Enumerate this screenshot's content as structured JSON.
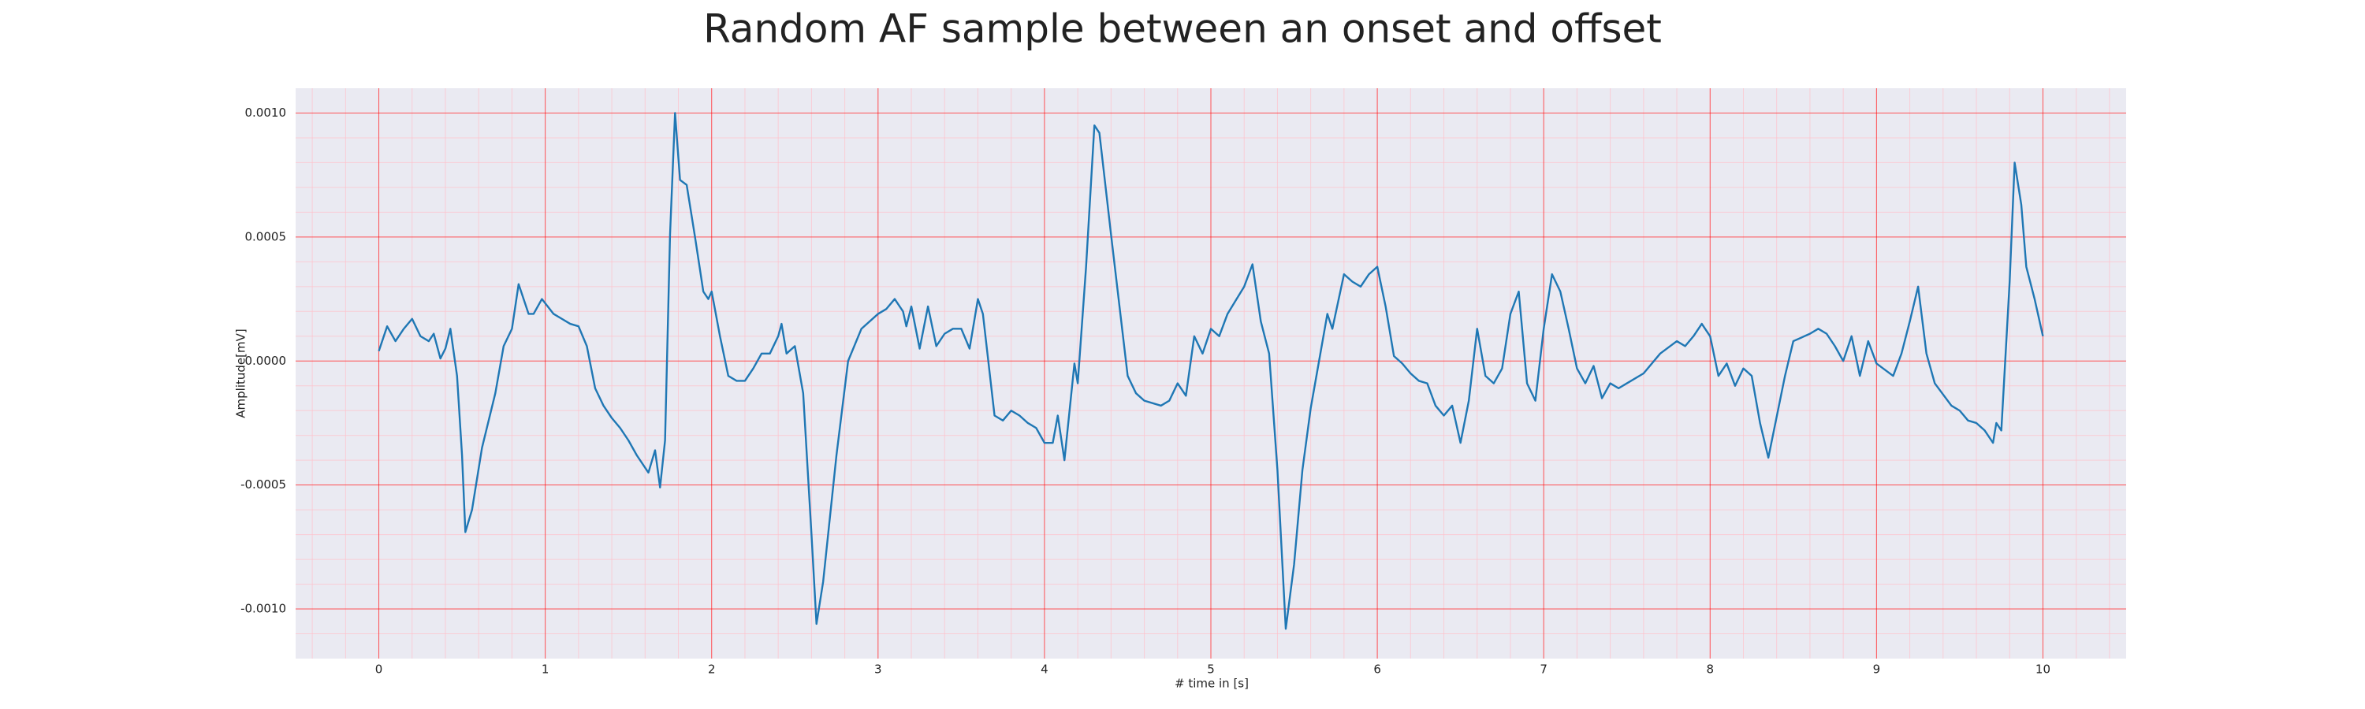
{
  "chart_data": {
    "type": "line",
    "title": "Random AF sample between an onset and offset",
    "xlabel": "# time in [s]",
    "ylabel": "Amplitude[mV]",
    "color": "#1f77b4",
    "grid": true,
    "minor_grid": true,
    "xlim": [
      -0.5,
      10.5
    ],
    "ylim": [
      -0.0012,
      0.0011
    ],
    "xticks": [
      0,
      1,
      2,
      3,
      4,
      5,
      6,
      7,
      8,
      9,
      10
    ],
    "yticks": [
      {
        "value": -0.001,
        "label": "-0.0010"
      },
      {
        "value": -0.0005,
        "label": "-0.0005"
      },
      {
        "value": 0,
        "label": "0.0000"
      },
      {
        "value": 0.0005,
        "label": "0.0005"
      },
      {
        "value": 0.001,
        "label": "0.0010"
      }
    ],
    "x": [
      0,
      0.05,
      0.1,
      0.15,
      0.2,
      0.25,
      0.3,
      0.33,
      0.37,
      0.4,
      0.43,
      0.47,
      0.5,
      0.52,
      0.56,
      0.62,
      0.7,
      0.75,
      0.8,
      0.84,
      0.9,
      0.93,
      0.98,
      1.05,
      1.1,
      1.15,
      1.2,
      1.25,
      1.3,
      1.35,
      1.4,
      1.45,
      1.5,
      1.55,
      1.62,
      1.66,
      1.69,
      1.72,
      1.75,
      1.78,
      1.81,
      1.85,
      1.9,
      1.95,
      1.98,
      2.0,
      2.05,
      2.1,
      2.15,
      2.2,
      2.25,
      2.3,
      2.35,
      2.4,
      2.42,
      2.45,
      2.5,
      2.55,
      2.6,
      2.63,
      2.67,
      2.75,
      2.82,
      2.9,
      3.0,
      3.05,
      3.1,
      3.15,
      3.17,
      3.2,
      3.25,
      3.3,
      3.35,
      3.4,
      3.45,
      3.5,
      3.55,
      3.6,
      3.63,
      3.7,
      3.75,
      3.8,
      3.85,
      3.9,
      3.95,
      4.0,
      4.05,
      4.08,
      4.12,
      4.18,
      4.2,
      4.25,
      4.3,
      4.33,
      4.4,
      4.5,
      4.55,
      4.6,
      4.7,
      4.75,
      4.8,
      4.85,
      4.9,
      4.95,
      5.0,
      5.05,
      5.1,
      5.2,
      5.25,
      5.3,
      5.35,
      5.4,
      5.45,
      5.5,
      5.55,
      5.6,
      5.65,
      5.7,
      5.73,
      5.8,
      5.85,
      5.9,
      5.95,
      6.0,
      6.05,
      6.1,
      6.15,
      6.2,
      6.25,
      6.3,
      6.35,
      6.4,
      6.45,
      6.5,
      6.55,
      6.6,
      6.65,
      6.7,
      6.75,
      6.8,
      6.85,
      6.9,
      6.95,
      7.0,
      7.05,
      7.1,
      7.15,
      7.2,
      7.25,
      7.3,
      7.35,
      7.4,
      7.45,
      7.5,
      7.6,
      7.7,
      7.8,
      7.85,
      7.9,
      7.95,
      8.0,
      8.05,
      8.1,
      8.15,
      8.2,
      8.25,
      8.3,
      8.35,
      8.45,
      8.5,
      8.6,
      8.65,
      8.7,
      8.75,
      8.8,
      8.85,
      8.9,
      8.95,
      9.0,
      9.1,
      9.15,
      9.2,
      9.25,
      9.3,
      9.35,
      9.45,
      9.5,
      9.55,
      9.6,
      9.65,
      9.7,
      9.72,
      9.75,
      9.8,
      9.83,
      9.87,
      9.9,
      9.95,
      10.0
    ],
    "values": [
      4e-05,
      0.00014,
      8e-05,
      0.00013,
      0.00017,
      0.0001,
      8e-05,
      0.00011,
      1e-05,
      5e-05,
      0.00013,
      -6e-05,
      -0.00038,
      -0.00069,
      -0.0006,
      -0.00035,
      -0.00013,
      6e-05,
      0.00013,
      0.00031,
      0.00019,
      0.00019,
      0.00025,
      0.00019,
      0.00017,
      0.00015,
      0.00014,
      6e-05,
      -0.00011,
      -0.00018,
      -0.00023,
      -0.00027,
      -0.00032,
      -0.00038,
      -0.00045,
      -0.00036,
      -0.00051,
      -0.00032,
      0.00051,
      0.001,
      0.00073,
      0.00071,
      0.0005,
      0.00028,
      0.00025,
      0.00028,
      0.0001,
      -6e-05,
      -8e-05,
      -8e-05,
      -3e-05,
      3e-05,
      3e-05,
      0.0001,
      0.00015,
      3e-05,
      6e-05,
      -0.00013,
      -0.0007,
      -0.00106,
      -0.00089,
      -0.00038,
      0.0,
      0.00013,
      0.00019,
      0.00021,
      0.00025,
      0.0002,
      0.00014,
      0.00022,
      5e-05,
      0.00022,
      6e-05,
      0.00011,
      0.00013,
      0.00013,
      5e-05,
      0.00025,
      0.00019,
      -0.00022,
      -0.00024,
      -0.0002,
      -0.00022,
      -0.00025,
      -0.00027,
      -0.00033,
      -0.00033,
      -0.00022,
      -0.0004,
      -1e-05,
      -9e-05,
      0.00038,
      0.00095,
      0.00092,
      0.00051,
      -6e-05,
      -0.00013,
      -0.00016,
      -0.00018,
      -0.00016,
      -9e-05,
      -0.00014,
      0.0001,
      3e-05,
      0.00013,
      0.0001,
      0.00019,
      0.0003,
      0.00039,
      0.00016,
      3e-05,
      -0.00044,
      -0.00108,
      -0.00082,
      -0.00044,
      -0.00019,
      0.0,
      0.00019,
      0.00013,
      0.00035,
      0.00032,
      0.0003,
      0.00035,
      0.00038,
      0.00022,
      2e-05,
      -1e-05,
      -5e-05,
      -8e-05,
      -9e-05,
      -0.00018,
      -0.00022,
      -0.00018,
      -0.00033,
      -0.00016,
      0.00013,
      -6e-05,
      -9e-05,
      -3e-05,
      0.00019,
      0.00028,
      -9e-05,
      -0.00016,
      0.00013,
      0.00035,
      0.00028,
      0.00013,
      -3e-05,
      -9e-05,
      -2e-05,
      -0.00015,
      -9e-05,
      -0.00011,
      -9e-05,
      -5e-05,
      3e-05,
      8e-05,
      6e-05,
      0.0001,
      0.00015,
      0.0001,
      -6e-05,
      -1e-05,
      -0.0001,
      -3e-05,
      -6e-05,
      -0.00025,
      -0.00039,
      -6e-05,
      8e-05,
      0.00011,
      0.00013,
      0.00011,
      6e-05,
      0.0,
      0.0001,
      -6e-05,
      8e-05,
      -1e-05,
      -6e-05,
      3e-05,
      0.00016,
      0.0003,
      3e-05,
      -9e-05,
      -0.00018,
      -0.0002,
      -0.00024,
      -0.00025,
      -0.00028,
      -0.00033,
      -0.00025,
      -0.00028,
      0.00032,
      0.0008,
      0.00063,
      0.00038,
      0.00025,
      0.0001
    ]
  }
}
